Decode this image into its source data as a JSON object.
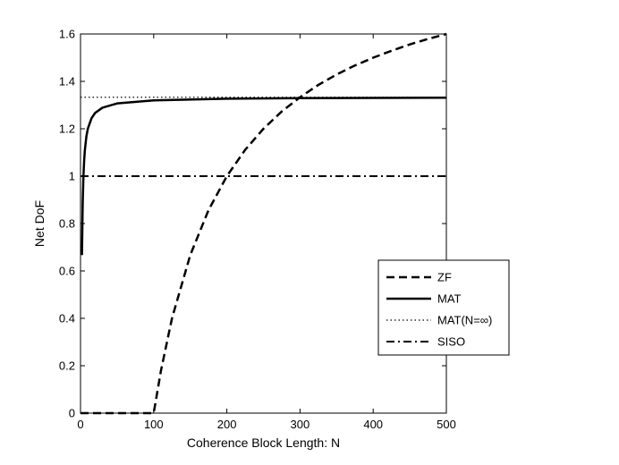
{
  "chart_data": {
    "type": "line",
    "title": "",
    "xlabel": "Coherence Block Length: N",
    "ylabel": "Net DoF",
    "xlim": [
      0,
      500
    ],
    "ylim": [
      0,
      1.6
    ],
    "xticks": [
      0,
      100,
      200,
      300,
      400,
      500
    ],
    "yticks": [
      0,
      0.2,
      0.4,
      0.6,
      0.8,
      1,
      1.2,
      1.4,
      1.6
    ],
    "xtick_labels": [
      "0",
      "100",
      "200",
      "300",
      "400",
      "500"
    ],
    "ytick_labels": [
      "0",
      "0.2",
      "0.4",
      "0.6",
      "0.8",
      "1",
      "1.2",
      "1.4",
      "1.6"
    ],
    "grid": false,
    "legend_position": "lower-right",
    "series": [
      {
        "name": "ZF",
        "style": "dashed",
        "color": "#000000",
        "x": [
          0,
          50,
          100,
          110,
          125,
          150,
          175,
          200,
          225,
          250,
          275,
          300,
          325,
          350,
          375,
          400,
          425,
          450,
          475,
          500
        ],
        "y": [
          0,
          0,
          0,
          0.18,
          0.4,
          0.667,
          0.857,
          1.0,
          1.111,
          1.2,
          1.273,
          1.333,
          1.385,
          1.429,
          1.467,
          1.5,
          1.529,
          1.556,
          1.579,
          1.6
        ]
      },
      {
        "name": "MAT",
        "style": "solid",
        "color": "#000000",
        "x": [
          2,
          3,
          4,
          5,
          6,
          8,
          10,
          15,
          20,
          30,
          50,
          100,
          200,
          300,
          400,
          500
        ],
        "y": [
          0.667,
          0.889,
          1.0,
          1.067,
          1.111,
          1.167,
          1.2,
          1.244,
          1.267,
          1.289,
          1.307,
          1.32,
          1.327,
          1.329,
          1.33,
          1.331
        ]
      },
      {
        "name": "MAT(N=∞)",
        "style": "dotted",
        "color": "#000000",
        "x": [
          0,
          500
        ],
        "y": [
          1.333,
          1.333
        ]
      },
      {
        "name": "SISO",
        "style": "dashdot",
        "color": "#000000",
        "x": [
          0,
          500
        ],
        "y": [
          1,
          1
        ]
      }
    ]
  }
}
